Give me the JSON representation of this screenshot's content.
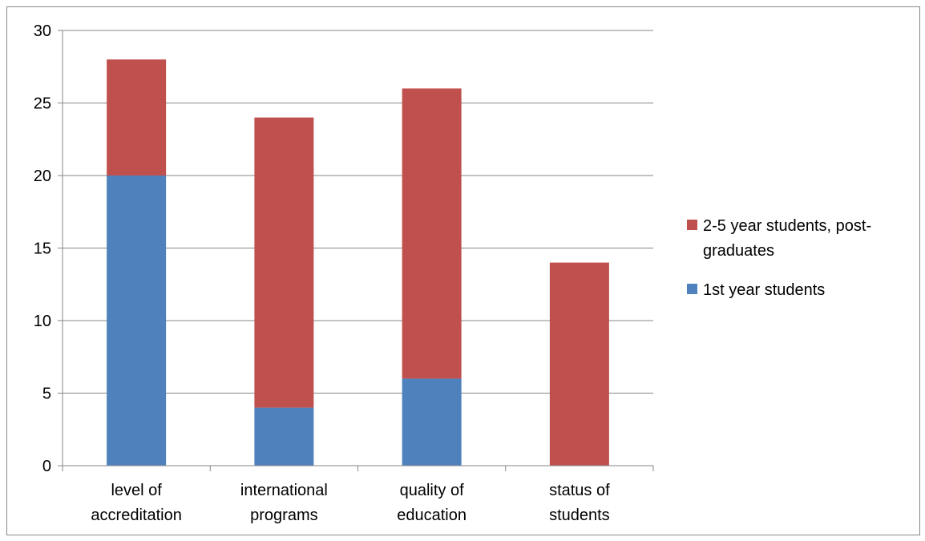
{
  "chart_data": {
    "type": "bar",
    "stacked": true,
    "categories": [
      [
        "level of",
        "accreditation"
      ],
      [
        "international",
        "programs"
      ],
      [
        "quality of",
        "education"
      ],
      [
        "status of",
        "students"
      ]
    ],
    "series": [
      {
        "name": "1st year students",
        "color": "#4f81bd",
        "values": [
          20,
          4,
          6,
          0
        ]
      },
      {
        "name": "2-5 year students, post-graduates",
        "color": "#c0504d",
        "values": [
          8,
          20,
          20,
          14
        ]
      }
    ],
    "ylim": [
      0,
      30
    ],
    "yticks": [
      0,
      5,
      10,
      15,
      20,
      25,
      30
    ],
    "grid": true,
    "legend": {
      "position": "right",
      "entries": [
        {
          "series": 1,
          "lines": [
            "2-5 year students, post-",
            "graduates"
          ]
        },
        {
          "series": 0,
          "lines": [
            "1st year students"
          ]
        }
      ]
    },
    "title": "",
    "xlabel": "",
    "ylabel": ""
  }
}
